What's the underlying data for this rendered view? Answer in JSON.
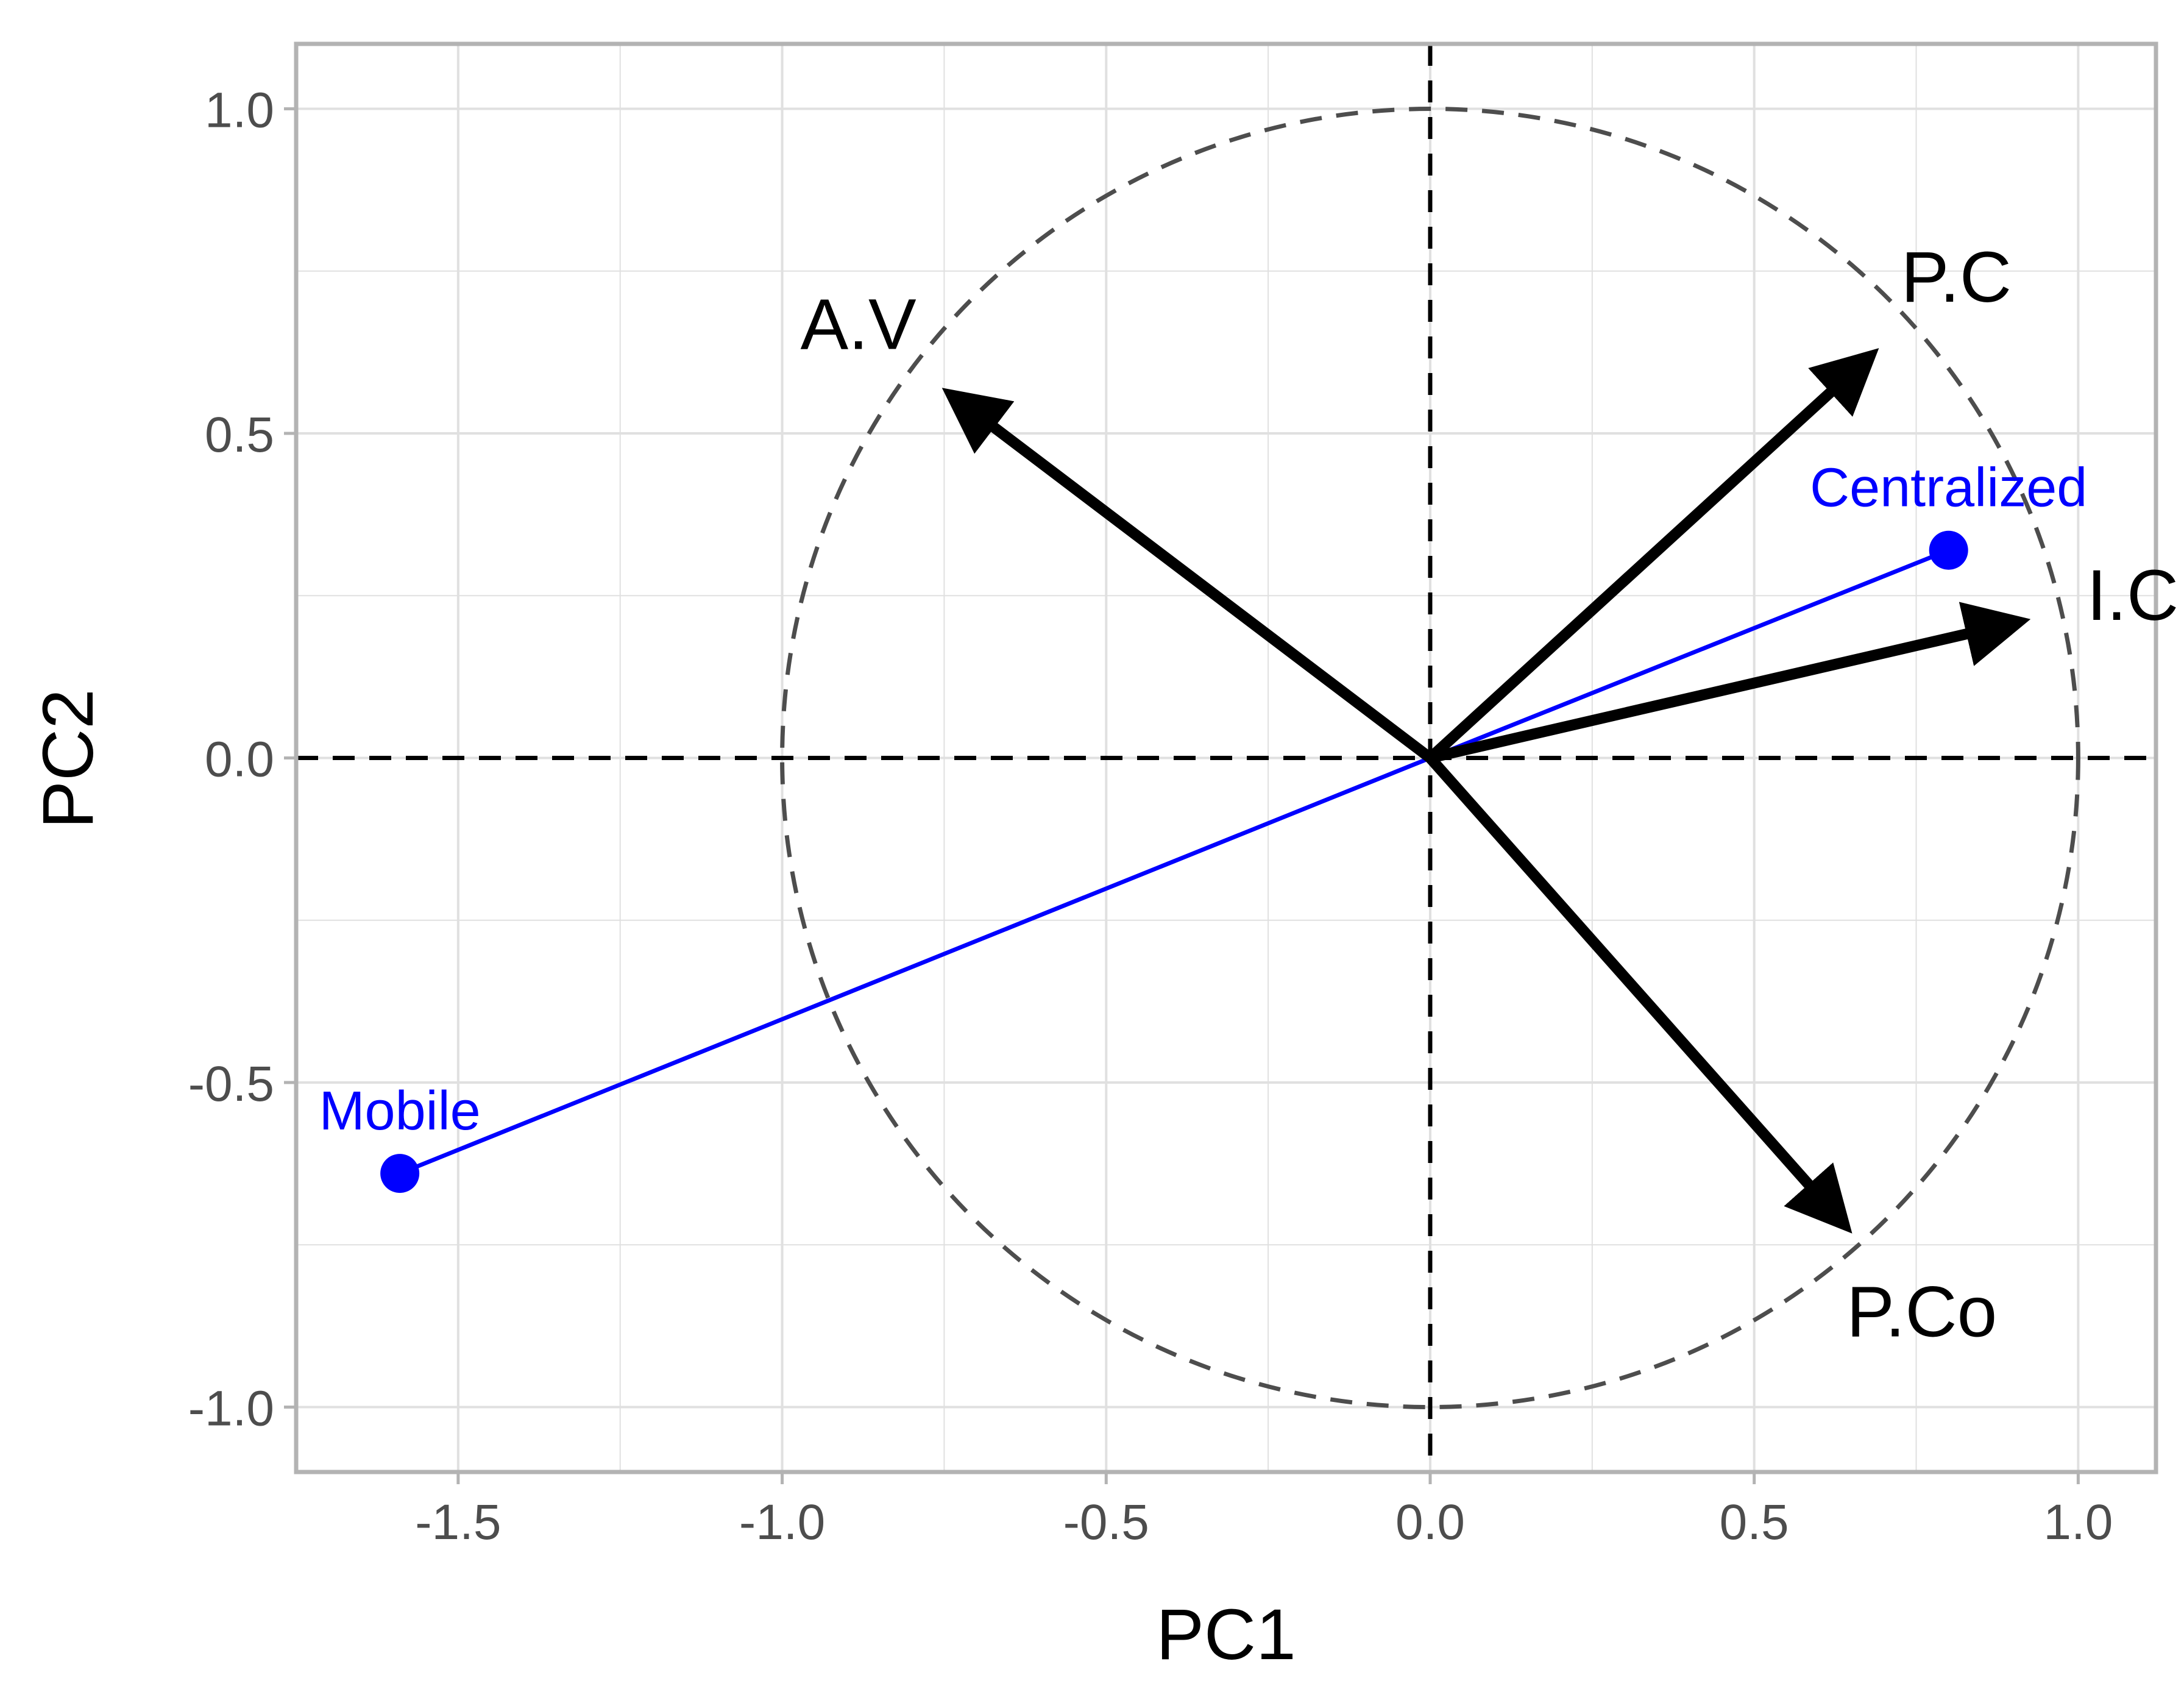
{
  "chart_data": {
    "type": "scatter",
    "xlabel": "PC1",
    "ylabel": "PC2",
    "xlim": [
      -1.75,
      1.12
    ],
    "ylim": [
      -1.1,
      1.1
    ],
    "x_ticks": [
      -1.5,
      -1.0,
      -0.5,
      0.0,
      0.5,
      1.0
    ],
    "x_tick_labels": [
      "-1.5",
      "-1.0",
      "-0.5",
      "0.0",
      "0.5",
      "1.0"
    ],
    "y_ticks": [
      -1.0,
      -0.5,
      0.0,
      0.5,
      1.0
    ],
    "y_tick_labels": [
      "-1.0",
      "-0.5",
      "0.0",
      "0.5",
      "1.0"
    ],
    "grid": true,
    "unit_circle": true,
    "reference_lines": [
      0,
      0
    ],
    "vectors": [
      {
        "label": "A.V",
        "x": -0.74,
        "y": 0.56
      },
      {
        "label": "P.C",
        "x": 0.68,
        "y": 0.62
      },
      {
        "label": "I.C",
        "x": 0.91,
        "y": 0.21
      },
      {
        "label": "P.Co",
        "x": 0.64,
        "y": -0.72
      }
    ],
    "points": [
      {
        "label": "Centralized",
        "x": 0.8,
        "y": 0.32
      },
      {
        "label": "Mobile",
        "x": -1.59,
        "y": -0.64
      }
    ],
    "colors": {
      "vectors": "#000000",
      "points": "#0000ff",
      "grid": "#e0e0e0",
      "panel_border": "#b3b3b3",
      "circle": "#4d4d4d",
      "tick_text": "#4d4d4d"
    }
  }
}
